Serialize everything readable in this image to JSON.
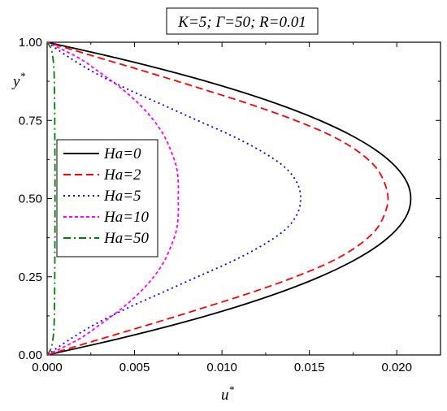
{
  "chart_data": {
    "type": "line",
    "title": "K=5; Γ=50; R=0.01",
    "xlabel": "u",
    "xlabel_sup": "*",
    "ylabel": "y",
    "ylabel_sup": "*",
    "xlim": [
      0,
      0.0225
    ],
    "ylim": [
      0,
      1
    ],
    "xticks": [
      "0.000",
      "0.005",
      "0.010",
      "0.015",
      "0.020"
    ],
    "xtick_values": [
      0,
      0.005,
      0.01,
      0.015,
      0.02
    ],
    "yticks": [
      "0.00",
      "0.25",
      "0.50",
      "0.75",
      "1.00"
    ],
    "ytick_values": [
      0,
      0.25,
      0.5,
      0.75,
      1.0
    ],
    "grid": false,
    "legend_position": "middle-left",
    "series": [
      {
        "name": "Ha=0",
        "color": "#000000",
        "dash": "solid",
        "y": [
          0,
          0.05,
          0.1,
          0.15,
          0.2,
          0.25,
          0.3,
          0.35,
          0.4,
          0.45,
          0.5,
          0.55,
          0.6,
          0.65,
          0.7,
          0.75,
          0.8,
          0.85,
          0.9,
          0.95,
          1.0
        ],
        "u": [
          0,
          0.00395,
          0.00749,
          0.01061,
          0.01331,
          0.0156,
          0.01747,
          0.01893,
          0.01997,
          0.0206,
          0.0208,
          0.0206,
          0.01997,
          0.01893,
          0.01747,
          0.0156,
          0.01331,
          0.01061,
          0.00749,
          0.00395,
          0
        ]
      },
      {
        "name": "Ha=2",
        "color": "#ff0000",
        "dash": "dashed",
        "y": [
          0,
          0.05,
          0.1,
          0.15,
          0.2,
          0.25,
          0.3,
          0.35,
          0.4,
          0.45,
          0.5,
          0.55,
          0.6,
          0.65,
          0.7,
          0.75,
          0.8,
          0.85,
          0.9,
          0.95,
          1.0
        ],
        "u": [
          0,
          0.003,
          0.006,
          0.0089,
          0.0117,
          0.0142,
          0.0163,
          0.0178,
          0.0188,
          0.0193,
          0.0195,
          0.0193,
          0.0188,
          0.0178,
          0.0163,
          0.0142,
          0.0117,
          0.0089,
          0.006,
          0.003,
          0
        ]
      },
      {
        "name": "Ha=5",
        "color": "#0000ff",
        "dash": "dotted",
        "y": [
          0,
          0.05,
          0.1,
          0.15,
          0.2,
          0.25,
          0.3,
          0.35,
          0.4,
          0.45,
          0.5,
          0.55,
          0.6,
          0.65,
          0.7,
          0.75,
          0.8,
          0.85,
          0.9,
          0.95,
          1.0
        ],
        "u": [
          0,
          0.0013,
          0.0028,
          0.0046,
          0.0066,
          0.0086,
          0.0106,
          0.0123,
          0.0136,
          0.0143,
          0.0145,
          0.0143,
          0.0136,
          0.0123,
          0.0106,
          0.0086,
          0.0066,
          0.0046,
          0.0028,
          0.0013,
          0
        ]
      },
      {
        "name": "Ha=10",
        "color": "#ff00ff",
        "dash": "short-dashed",
        "y": [
          0,
          0.05,
          0.1,
          0.15,
          0.2,
          0.25,
          0.3,
          0.35,
          0.4,
          0.45,
          0.5,
          0.55,
          0.6,
          0.65,
          0.7,
          0.75,
          0.8,
          0.85,
          0.9,
          0.95,
          1.0
        ],
        "u": [
          0,
          0.0018,
          0.0031,
          0.0043,
          0.0053,
          0.0061,
          0.0067,
          0.0071,
          0.0074,
          0.0075,
          0.0075,
          0.0075,
          0.0074,
          0.0071,
          0.0067,
          0.0061,
          0.0053,
          0.0043,
          0.0031,
          0.0018,
          0
        ]
      },
      {
        "name": "Ha=50",
        "color": "#008000",
        "dash": "dash-dot",
        "y": [
          0,
          0.02,
          0.05,
          0.1,
          0.2,
          0.3,
          0.4,
          0.5,
          0.6,
          0.7,
          0.8,
          0.9,
          0.95,
          0.98,
          1.0
        ],
        "u": [
          0,
          0.00022,
          0.00033,
          0.0004,
          0.00043,
          0.00044,
          0.00045,
          0.00045,
          0.00045,
          0.00044,
          0.00043,
          0.0004,
          0.00033,
          0.00022,
          0
        ]
      }
    ]
  }
}
